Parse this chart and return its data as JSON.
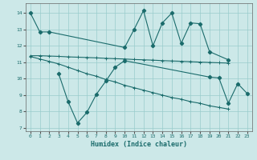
{
  "bg_color": "#cce8e8",
  "grid_color": "#99cccc",
  "line_color": "#1a6b6b",
  "xlabel": "Humidex (Indice chaleur)",
  "xlim": [
    -0.5,
    23.5
  ],
  "ylim": [
    6.8,
    14.6
  ],
  "yticks": [
    7,
    8,
    9,
    10,
    11,
    12,
    13,
    14
  ],
  "xticks": [
    0,
    1,
    2,
    3,
    4,
    5,
    6,
    7,
    8,
    9,
    10,
    11,
    12,
    13,
    14,
    15,
    16,
    17,
    18,
    19,
    20,
    21,
    22,
    23
  ],
  "line1_x": [
    0,
    1,
    2,
    10,
    11,
    12,
    13,
    14,
    15,
    16,
    17,
    18,
    19,
    21
  ],
  "line1_y": [
    14.0,
    12.85,
    12.85,
    11.9,
    13.0,
    14.15,
    12.0,
    13.4,
    14.0,
    12.15,
    13.4,
    13.35,
    11.65,
    11.15
  ],
  "line2_x": [
    0,
    1,
    2,
    3,
    4,
    5,
    6,
    7,
    8,
    9,
    10,
    11,
    12,
    13,
    14,
    15,
    16,
    17,
    18,
    19,
    20,
    21
  ],
  "line2_y": [
    11.4,
    11.4,
    11.38,
    11.36,
    11.33,
    11.31,
    11.29,
    11.27,
    11.24,
    11.22,
    11.2,
    11.17,
    11.15,
    11.13,
    11.1,
    11.08,
    11.06,
    11.04,
    11.01,
    10.99,
    10.97,
    10.95
  ],
  "line3_x": [
    0,
    1,
    2,
    3,
    4,
    5,
    6,
    7,
    8,
    9,
    10,
    11,
    12,
    13,
    14,
    15,
    16,
    17,
    18,
    19,
    20,
    21
  ],
  "line3_y": [
    11.35,
    11.2,
    11.05,
    10.9,
    10.7,
    10.5,
    10.3,
    10.15,
    9.95,
    9.8,
    9.6,
    9.45,
    9.3,
    9.15,
    9.0,
    8.85,
    8.75,
    8.6,
    8.5,
    8.35,
    8.25,
    8.15
  ],
  "line4_x": [
    3,
    4,
    5,
    6,
    7,
    8,
    9,
    10,
    19,
    20,
    21,
    22,
    23
  ],
  "line4_y": [
    10.3,
    8.6,
    7.3,
    7.95,
    9.05,
    9.85,
    10.7,
    11.1,
    10.1,
    10.05,
    8.5,
    9.7,
    9.1
  ]
}
